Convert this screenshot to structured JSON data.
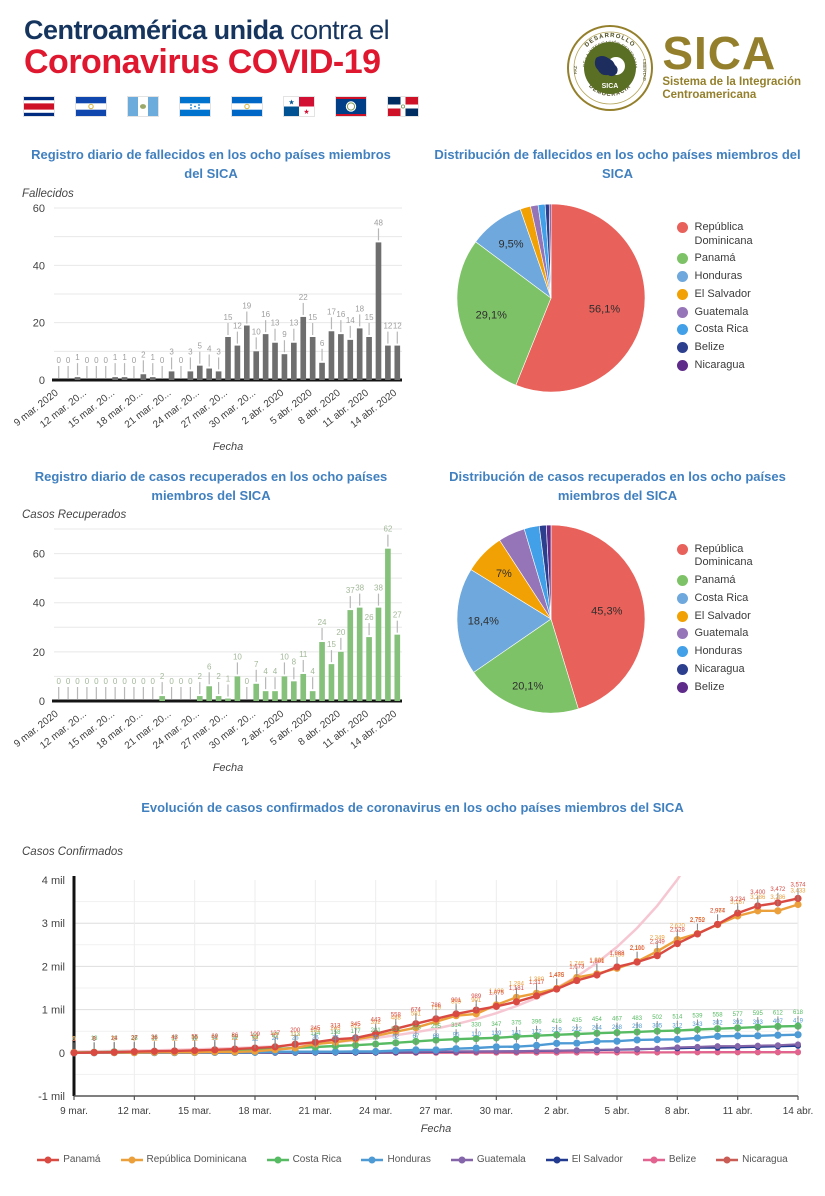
{
  "header": {
    "title_bold": "Centroamérica unida",
    "title_rest": " contra el",
    "title_line2": "Coronavirus COVID-19",
    "flag_countries": [
      "Costa Rica",
      "El Salvador",
      "Guatemala",
      "Honduras",
      "Nicaragua",
      "Panamá",
      "Belize",
      "República Dominicana"
    ],
    "logo": {
      "acronym": "SICA",
      "subtitle_line1": "Sistema de la Integración",
      "subtitle_line2": "Centroamericana",
      "seal_top": "DESARROLLO",
      "seal_ring": "SISTEMA DE LA INTEGRACIÓN CENTROAMERICANA",
      "seal_left": "PAZ",
      "seal_right": "LIBERTAD",
      "seal_center": "SICA",
      "seal_bottom": "DEMOCRACIA"
    },
    "colors": {
      "navy": "#16355e",
      "red": "#df1830",
      "gold": "#94802c",
      "title_blue": "#4180bf"
    }
  },
  "dates": [
    "9 mar.",
    "10 mar.",
    "11 mar.",
    "12 mar.",
    "13 mar.",
    "14 mar.",
    "15 mar.",
    "16 mar.",
    "17 mar.",
    "18 mar.",
    "19 mar.",
    "20 mar.",
    "21 mar.",
    "22 mar.",
    "23 mar.",
    "24 mar.",
    "25 mar.",
    "26 mar.",
    "27 mar.",
    "28 mar.",
    "29 mar.",
    "30 mar.",
    "31 mar.",
    "1 abr.",
    "2 abr.",
    "3 abr.",
    "4 abr.",
    "5 abr.",
    "6 abr.",
    "7 abr.",
    "8 abr.",
    "9 abr.",
    "10 abr.",
    "11 abr.",
    "12 abr.",
    "13 abr.",
    "14 abr."
  ],
  "chart_data": [
    {
      "id": "deaths_daily",
      "type": "bar",
      "title": "Registro diario de fallecidos en los ocho países miembros del SICA",
      "ylabel": "Fallecidos",
      "xlabel": "Fecha",
      "ylim": [
        0,
        60
      ],
      "yticks": [
        0,
        20,
        40,
        60
      ],
      "grid_step": 10,
      "xtick_labels": [
        "9 mar. 2020",
        "12 mar. 20...",
        "15 mar. 20...",
        "18 mar. 20...",
        "21 mar. 20...",
        "24 mar. 20...",
        "27 mar. 20...",
        "30 mar. 20...",
        "2 abr. 2020",
        "5 abr. 2020",
        "8 abr. 2020",
        "11 abr. 2020",
        "14 abr. 2020"
      ],
      "values": [
        0,
        0,
        1,
        0,
        0,
        0,
        1,
        1,
        0,
        2,
        1,
        0,
        3,
        0,
        3,
        5,
        4,
        3,
        15,
        12,
        19,
        10,
        16,
        13,
        9,
        13,
        22,
        15,
        6,
        17,
        16,
        14,
        18,
        15,
        48,
        12,
        12
      ],
      "bar_color": "#6e6e6e",
      "label_color": "#9e9e9e"
    },
    {
      "id": "deaths_distribution",
      "type": "pie",
      "title": "Distribución de fallecidos en los ocho países miembros del SICA",
      "legend_position": "right",
      "slices": [
        {
          "name": "República Dominicana",
          "value": 56.1,
          "label": "56,1%",
          "label_r": 0.58,
          "color": "#e8615a"
        },
        {
          "name": "Panamá",
          "value": 29.1,
          "label": "29,1%",
          "label_r": 0.66,
          "color": "#7ec268"
        },
        {
          "name": "Honduras",
          "value": 9.5,
          "label": "9,5%",
          "label_r": 0.72,
          "color": "#6fa8dc"
        },
        {
          "name": "El Salvador",
          "value": 1.8,
          "color": "#f1a104"
        },
        {
          "name": "Guatemala",
          "value": 1.3,
          "color": "#9674b8"
        },
        {
          "name": "Costa Rica",
          "value": 1.2,
          "color": "#42a0e8"
        },
        {
          "name": "Belize",
          "value": 0.7,
          "color": "#2c3f8e"
        },
        {
          "name": "Nicaragua",
          "value": 0.3,
          "color": "#5e2b8a"
        }
      ]
    },
    {
      "id": "recovered_daily",
      "type": "bar",
      "title": "Registro diario de casos recuperados en los ocho países miembros del SICA",
      "ylabel": "Casos Recuperados",
      "xlabel": "Fecha",
      "ylim": [
        0,
        70
      ],
      "yticks": [
        0,
        20,
        40,
        60
      ],
      "grid_step": 10,
      "xtick_labels": [
        "9 mar. 2020",
        "12 mar. 20...",
        "15 mar. 20...",
        "18 mar. 20...",
        "21 mar. 20...",
        "24 mar. 20...",
        "27 mar. 20...",
        "30 mar. 20...",
        "2 abr. 2020",
        "5 abr. 2020",
        "8 abr. 2020",
        "11 abr. 2020",
        "14 abr. 2020"
      ],
      "values": [
        0,
        0,
        0,
        0,
        0,
        0,
        0,
        0,
        0,
        0,
        0,
        2,
        0,
        0,
        0,
        2,
        6,
        2,
        1,
        10,
        0,
        7,
        4,
        4,
        10,
        8,
        11,
        4,
        24,
        15,
        20,
        37,
        38,
        26,
        38,
        62,
        27
      ],
      "bar_color": "#85c17a",
      "label_color": "#a3b89a"
    },
    {
      "id": "recovered_distribution",
      "type": "pie",
      "title": "Distribución de casos recuperados en los ocho países miembros del SICA",
      "legend_position": "right",
      "slices": [
        {
          "name": "República Dominicana",
          "value": 45.3,
          "label": "45,3%",
          "label_r": 0.6,
          "color": "#e8615a"
        },
        {
          "name": "Panamá",
          "value": 20.1,
          "label": "20,1%",
          "label_r": 0.75,
          "color": "#7ec268"
        },
        {
          "name": "Costa Rica",
          "value": 18.4,
          "label": "18,4%",
          "label_r": 0.72,
          "color": "#6fa8dc"
        },
        {
          "name": "El Salvador",
          "value": 7.0,
          "label": "7%",
          "label_r": 0.7,
          "color": "#f1a104"
        },
        {
          "name": "Guatemala",
          "value": 4.6,
          "color": "#9674b8"
        },
        {
          "name": "Honduras",
          "value": 2.6,
          "color": "#42a0e8"
        },
        {
          "name": "Nicaragua",
          "value": 1.2,
          "color": "#2c3f8e"
        },
        {
          "name": "Belize",
          "value": 0.8,
          "color": "#5e2b8a"
        }
      ]
    },
    {
      "id": "confirmed_evolution",
      "type": "line",
      "title": "Evolución de casos confirmados de coronavirus en los ocho países miembros del SICA",
      "ylabel": "Casos Confirmados",
      "xlabel": "Fecha",
      "ylim": [
        -1000,
        4000
      ],
      "ytick_values": [
        -1000,
        0,
        1000,
        2000,
        3000,
        4000
      ],
      "ytick_labels": [
        "-1 mil",
        "0",
        "1 mil",
        "2 mil",
        "3 mil",
        "4 mil"
      ],
      "xtick_labels": [
        "9 mar.",
        "12 mar.",
        "15 mar.",
        "18 mar.",
        "21 mar.",
        "24 mar.",
        "27 mar.",
        "30 mar.",
        "2 abr.",
        "5 abr.",
        "8 abr.",
        "11 abr.",
        "14 abr."
      ],
      "series": [
        {
          "name": "Panamá",
          "color": "#d94a43",
          "labeled": true,
          "values": [
            1,
            8,
            14,
            27,
            36,
            43,
            55,
            69,
            86,
            109,
            137,
            200,
            245,
            313,
            345,
            443,
            558,
            674,
            786,
            901,
            989,
            1075,
            1181,
            1317,
            1475,
            1673,
            1801,
            1988,
            2100,
            2249,
            2528,
            2752,
            2974,
            3234,
            3400,
            3472,
            3574
          ]
        },
        {
          "name": "República Dominicana",
          "color": "#eba03c",
          "labeled": true,
          "values": [
            5,
            5,
            5,
            5,
            11,
            11,
            11,
            21,
            21,
            34,
            72,
            112,
            202,
            245,
            312,
            392,
            488,
            581,
            719,
            859,
            901,
            1109,
            1284,
            1380,
            1488,
            1745,
            1828,
            1956,
            2111,
            2349,
            2620,
            2759,
            2967,
            3167,
            3286,
            3286,
            3433
          ]
        },
        {
          "name": "Costa Rica",
          "color": "#57bb63",
          "labeled": true,
          "values": [
            9,
            13,
            22,
            23,
            26,
            27,
            35,
            41,
            50,
            69,
            87,
            113,
            134,
            158,
            177,
            201,
            231,
            263,
            295,
            314,
            330,
            347,
            375,
            396,
            416,
            435,
            454,
            467,
            483,
            502,
            514,
            539,
            558,
            577,
            595,
            612,
            618
          ]
        },
        {
          "name": "Honduras",
          "color": "#4e9ad5",
          "labeled": true,
          "values": [
            0,
            0,
            3,
            3,
            3,
            3,
            6,
            8,
            9,
            12,
            24,
            26,
            26,
            26,
            30,
            30,
            52,
            67,
            68,
            95,
            110,
            139,
            141,
            172,
            219,
            222,
            264,
            268,
            298,
            305,
            312,
            343,
            382,
            392,
            393,
            407,
            419
          ]
        },
        {
          "name": "Guatemala",
          "color": "#8565a9",
          "labeled": false,
          "values": [
            0,
            0,
            0,
            0,
            1,
            1,
            1,
            2,
            6,
            6,
            9,
            12,
            17,
            19,
            20,
            21,
            24,
            25,
            28,
            34,
            36,
            38,
            39,
            47,
            50,
            61,
            70,
            77,
            87,
            95,
            126,
            137,
            155,
            156,
            167,
            176,
            196
          ]
        },
        {
          "name": "El Salvador",
          "color": "#223a8f",
          "labeled": false,
          "values": [
            0,
            0,
            0,
            0,
            0,
            0,
            0,
            0,
            0,
            1,
            1,
            1,
            3,
            3,
            3,
            5,
            9,
            13,
            19,
            24,
            30,
            32,
            32,
            41,
            46,
            56,
            62,
            69,
            78,
            93,
            103,
            117,
            118,
            125,
            137,
            149,
            159
          ]
        },
        {
          "name": "Belize",
          "color": "#e2638f",
          "labeled": false,
          "values": [
            0,
            0,
            0,
            0,
            0,
            0,
            0,
            0,
            0,
            0,
            0,
            0,
            0,
            0,
            1,
            1,
            2,
            2,
            2,
            2,
            3,
            3,
            3,
            4,
            5,
            7,
            8,
            10,
            13,
            14,
            15,
            16,
            18,
            18,
            18,
            18,
            18
          ]
        },
        {
          "name": "Nicaragua",
          "color": "#c95c54",
          "labeled": false,
          "values": [
            0,
            0,
            0,
            0,
            0,
            0,
            0,
            0,
            0,
            1,
            1,
            1,
            2,
            2,
            2,
            2,
            2,
            2,
            2,
            4,
            4,
            5,
            5,
            5,
            5,
            6,
            6,
            6,
            7,
            8,
            9,
            9,
            9,
            9,
            9,
            9,
            9
          ]
        }
      ],
      "trend": {
        "color": "#f6c7d2",
        "base": 1500,
        "growth": 1.178,
        "anchor_index": 24
      }
    }
  ]
}
